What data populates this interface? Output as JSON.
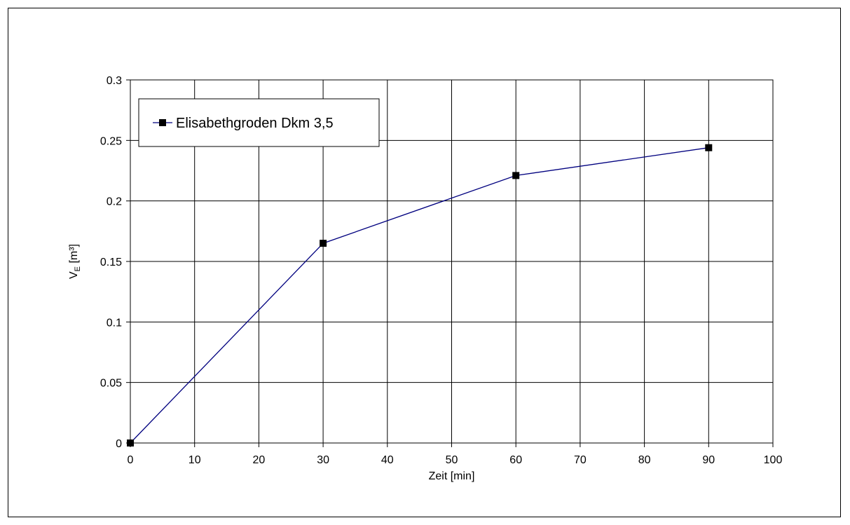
{
  "chart_data": {
    "type": "line",
    "title": "",
    "xlabel": "Zeit [min]",
    "ylabel_main": "V",
    "ylabel_sub": "E",
    "ylabel_unit": " [m³]",
    "xlim": [
      0,
      100
    ],
    "ylim": [
      0,
      0.3
    ],
    "x_ticks": [
      "0",
      "10",
      "20",
      "30",
      "40",
      "50",
      "60",
      "70",
      "80",
      "90",
      "100"
    ],
    "y_ticks": [
      "0",
      "0.05",
      "0.1",
      "0.15",
      "0.2",
      "0.25",
      "0.3"
    ],
    "grid": true,
    "legend_position": "top-left",
    "series": [
      {
        "name": "Elisabethgroden Dkm 3,5",
        "color": "#00007f",
        "marker": "square",
        "x": [
          0,
          30,
          60,
          90
        ],
        "y": [
          0,
          0.165,
          0.221,
          0.244
        ]
      }
    ]
  }
}
